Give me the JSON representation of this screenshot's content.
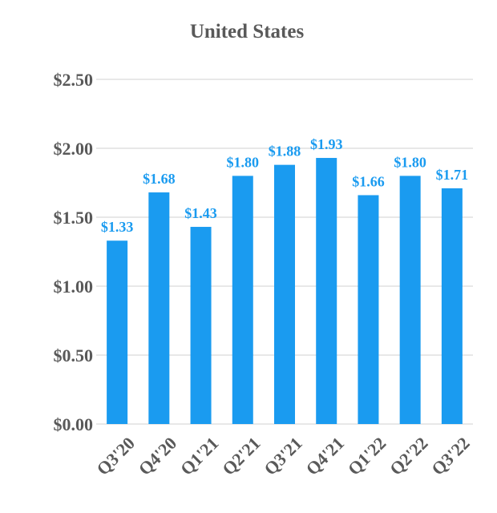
{
  "colors": {
    "bar": "#1A9BF0",
    "data_label": "#1A9BF0",
    "axis_text": "#595959",
    "grid": "#D9D9D9"
  },
  "chart_data": {
    "type": "bar",
    "title": "United States",
    "xlabel": "",
    "ylabel": "",
    "categories": [
      "Q3'20",
      "Q4'20",
      "Q1'21",
      "Q2'21",
      "Q3'21",
      "Q4'21",
      "Q1'22",
      "Q2'22",
      "Q3'22"
    ],
    "values": [
      1.33,
      1.68,
      1.43,
      1.8,
      1.88,
      1.93,
      1.66,
      1.8,
      1.71
    ],
    "data_labels": [
      "$1.33",
      "$1.68",
      "$1.43",
      "$1.80",
      "$1.88",
      "$1.93",
      "$1.66",
      "$1.80",
      "$1.71"
    ],
    "ylim": [
      0,
      2.5
    ],
    "y_ticks": [
      0,
      0.5,
      1.0,
      1.5,
      2.0,
      2.5
    ],
    "y_tick_labels": [
      "$0.00",
      "$0.50",
      "$1.00",
      "$1.50",
      "$2.00",
      "$2.50"
    ],
    "grid": true,
    "legend": "none"
  }
}
